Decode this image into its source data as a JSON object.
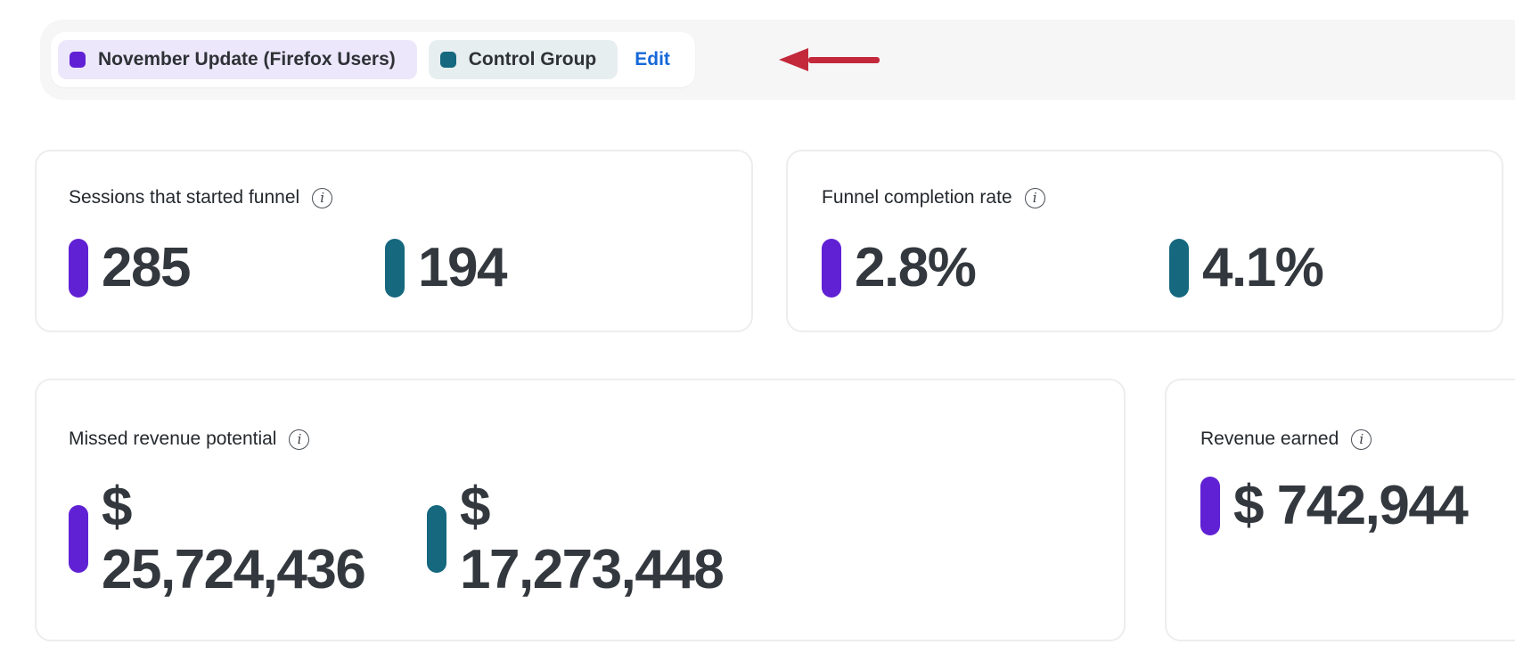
{
  "legend": {
    "variants": [
      {
        "label": "November Update (Firefox Users)",
        "color": "#6021D4",
        "bg": "#ECE7FA"
      },
      {
        "label": "Control Group",
        "color": "#15687E",
        "bg": "#E7EEF0"
      }
    ],
    "edit_label": "Edit"
  },
  "annotation": {
    "arrow_color": "#C3293B",
    "points_at": "Edit"
  },
  "icons": {
    "info": "i"
  },
  "metrics": {
    "sessions": {
      "title": "Sessions that started funnel",
      "values": [
        {
          "variant": "November Update (Firefox Users)",
          "color": "#6021D4",
          "text": "285"
        },
        {
          "variant": "Control Group",
          "color": "#15687E",
          "text": "194"
        }
      ]
    },
    "completion": {
      "title": "Funnel completion rate",
      "values": [
        {
          "variant": "November Update (Firefox Users)",
          "color": "#6021D4",
          "text": "2.8%"
        },
        {
          "variant": "Control Group",
          "color": "#15687E",
          "text": "4.1%"
        }
      ]
    },
    "missed_revenue": {
      "title": "Missed revenue potential",
      "values": [
        {
          "variant": "November Update (Firefox Users)",
          "color": "#6021D4",
          "currency": "$",
          "amount": "25,724,436"
        },
        {
          "variant": "Control Group",
          "color": "#15687E",
          "currency": "$",
          "amount": "17,273,448"
        }
      ]
    },
    "revenue_earned": {
      "title": "Revenue earned",
      "values": [
        {
          "variant": "November Update (Firefox Users)",
          "color": "#6021D4",
          "currency": "$",
          "amount": "742,944"
        }
      ]
    }
  }
}
